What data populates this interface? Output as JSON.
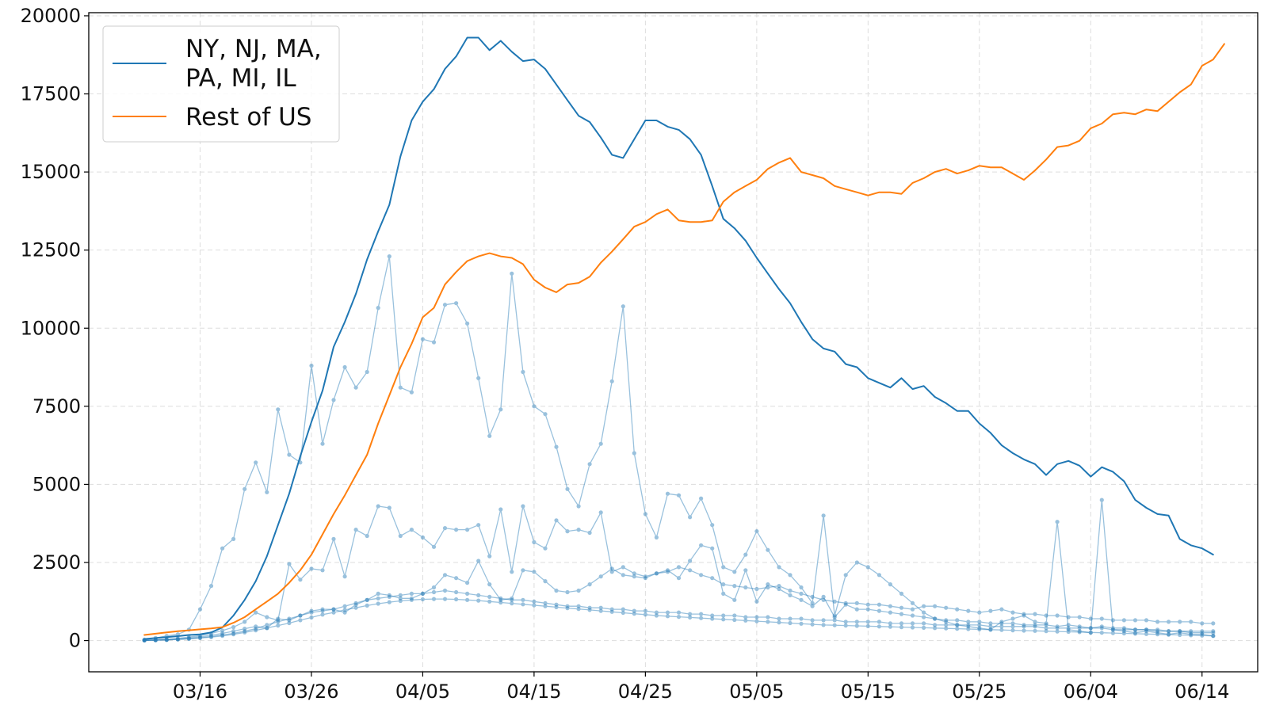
{
  "chart_data": {
    "type": "line",
    "title": "",
    "xlabel": "",
    "ylabel": "",
    "x_range": [
      "2020-03-06",
      "2020-06-19"
    ],
    "ylim": [
      -1000,
      20100
    ],
    "x_ticks": [
      {
        "date": "2020-03-16",
        "label": "03/16"
      },
      {
        "date": "2020-03-26",
        "label": "03/26"
      },
      {
        "date": "2020-04-05",
        "label": "04/05"
      },
      {
        "date": "2020-04-15",
        "label": "04/15"
      },
      {
        "date": "2020-04-25",
        "label": "04/25"
      },
      {
        "date": "2020-05-05",
        "label": "05/05"
      },
      {
        "date": "2020-05-15",
        "label": "05/15"
      },
      {
        "date": "2020-05-25",
        "label": "05/25"
      },
      {
        "date": "2020-06-04",
        "label": "06/04"
      },
      {
        "date": "2020-06-14",
        "label": "06/14"
      }
    ],
    "y_ticks": [
      {
        "value": 0,
        "label": "0"
      },
      {
        "value": 2500,
        "label": "2500"
      },
      {
        "value": 5000,
        "label": "5000"
      },
      {
        "value": 7500,
        "label": "7500"
      },
      {
        "value": 10000,
        "label": "10000"
      },
      {
        "value": 12500,
        "label": "12500"
      },
      {
        "value": 15000,
        "label": "15000"
      },
      {
        "value": 17500,
        "label": "17500"
      },
      {
        "value": 20000,
        "label": "20000"
      }
    ],
    "grid": true,
    "legend_position": "top-left",
    "dates_start": "2020-03-11",
    "series": [
      {
        "name": "NY, NJ, MA,\nPA, MI, IL",
        "color": "#1f77b4",
        "width": 2,
        "values": [
          50,
          80,
          110,
          140,
          180,
          200,
          260,
          420,
          800,
          1300,
          1900,
          2700,
          3700,
          4700,
          5900,
          7000,
          8000,
          9400,
          10200,
          11100,
          12200,
          13100,
          13950,
          15500,
          16650,
          17250,
          17650,
          18300,
          18700,
          19300,
          19300,
          18900,
          19200,
          18850,
          18550,
          18600,
          18300,
          17800,
          17300,
          16800,
          16600,
          16100,
          15550,
          15450,
          16050,
          16650,
          16650,
          16450,
          16350,
          16050,
          15550,
          14550,
          13500,
          13200,
          12800,
          12250,
          11750,
          11250,
          10800,
          10200,
          9650,
          9350,
          9250,
          8850,
          8750,
          8400,
          8250,
          8100,
          8400,
          8050,
          8150,
          7800,
          7600,
          7350,
          7350,
          6950,
          6650,
          6250,
          6000,
          5800,
          5650,
          5300,
          5650,
          5750,
          5600,
          5250,
          5550,
          5400,
          5100,
          4500,
          4250,
          4050,
          4000,
          3250,
          3050,
          2950,
          2750
        ]
      },
      {
        "name": "Rest of US",
        "color": "#ff7f0e",
        "width": 2,
        "values": [
          180,
          220,
          260,
          300,
          330,
          360,
          390,
          430,
          570,
          750,
          1000,
          1250,
          1500,
          1850,
          2250,
          2750,
          3400,
          4050,
          4650,
          5300,
          5950,
          6950,
          7850,
          8750,
          9500,
          10350,
          10650,
          11400,
          11800,
          12150,
          12300,
          12400,
          12300,
          12250,
          12050,
          11550,
          11300,
          11150,
          11400,
          11450,
          11650,
          12100,
          12450,
          12850,
          13250,
          13400,
          13650,
          13800,
          13450,
          13400,
          13400,
          13450,
          14050,
          14350,
          14550,
          14750,
          15100,
          15300,
          15450,
          15000,
          14900,
          14800,
          14550,
          14450,
          14350,
          14250,
          14350,
          14350,
          14300,
          14650,
          14800,
          15000,
          15100,
          14950,
          15050,
          15200,
          15150,
          15150,
          14950,
          14750,
          15050,
          15400,
          15800,
          15850,
          16000,
          16400,
          16550,
          16850,
          16900,
          16850,
          17000,
          16950,
          17250,
          17550,
          17800,
          18400,
          18600,
          19100
        ]
      },
      {
        "name": "",
        "color": "#1f77b4",
        "width": 1.3,
        "opacity": 0.45,
        "markers": true,
        "values": [
          30,
          80,
          150,
          200,
          350,
          1000,
          1750,
          2950,
          3250,
          4850,
          5700,
          4750,
          7400,
          5950,
          5700,
          8800,
          6300,
          7700,
          8750,
          8100,
          8600,
          10650,
          12300,
          8100,
          7950,
          9650,
          9550,
          10750,
          10800,
          10150,
          8400,
          6550,
          7400,
          11750,
          8600,
          7500,
          7250,
          6200,
          4850,
          4300,
          5650,
          6300,
          8300,
          10700,
          6000,
          4050,
          3300,
          4700,
          4650,
          3950,
          4550,
          3700,
          2350,
          2200,
          2750,
          3500,
          2900,
          2350,
          2100,
          1700,
          1200,
          4000,
          800,
          2100,
          2500,
          2350,
          2100,
          1800,
          1500,
          1200,
          900,
          700,
          600,
          500,
          450,
          400,
          350,
          600,
          700,
          800,
          600,
          550,
          3800,
          350,
          300,
          250,
          4500,
          350,
          300,
          250,
          300,
          250,
          200,
          250,
          200,
          200,
          150
        ]
      },
      {
        "name": "",
        "color": "#1f77b4",
        "width": 1.3,
        "opacity": 0.45,
        "markers": true,
        "values": [
          10,
          20,
          40,
          70,
          110,
          160,
          230,
          320,
          430,
          600,
          900,
          750,
          650,
          2450,
          1950,
          2300,
          2250,
          3250,
          2050,
          3550,
          3350,
          4300,
          4250,
          3350,
          3550,
          3300,
          3000,
          3600,
          3550,
          3550,
          3700,
          2700,
          4200,
          2200,
          4300,
          3150,
          2950,
          3850,
          3500,
          3550,
          3450,
          4100,
          2200,
          2350,
          2150,
          2050,
          2150,
          2250,
          2000,
          2550,
          3050,
          2950,
          1500,
          1300,
          2250,
          1250,
          1800,
          1650,
          1450,
          1300,
          1100,
          1400,
          750,
          1150,
          1000,
          1000,
          950,
          900,
          850,
          800,
          750,
          700,
          650,
          650,
          600,
          600,
          550,
          550,
          550,
          500,
          500,
          500,
          450,
          500,
          450,
          400,
          450,
          400,
          400,
          350,
          350,
          300,
          300,
          300,
          250,
          250,
          250
        ]
      },
      {
        "name": "",
        "color": "#1f77b4",
        "width": 1.3,
        "opacity": 0.45,
        "markers": true,
        "values": [
          10,
          20,
          30,
          50,
          80,
          120,
          170,
          230,
          300,
          380,
          450,
          400,
          700,
          650,
          800,
          950,
          1000,
          1000,
          900,
          1150,
          1300,
          1500,
          1450,
          1350,
          1350,
          1500,
          1700,
          2100,
          2000,
          1850,
          2550,
          1800,
          1300,
          1350,
          2250,
          2200,
          1900,
          1600,
          1550,
          1600,
          1800,
          2050,
          2300,
          2100,
          2050,
          2000,
          2150,
          2200,
          2350,
          2250,
          2100,
          2000,
          1800,
          1750,
          1700,
          1650,
          1700,
          1750,
          1600,
          1500,
          1400,
          1300,
          1250,
          1200,
          1200,
          1150,
          1150,
          1100,
          1050,
          1000,
          1100,
          1100,
          1050,
          1000,
          950,
          900,
          950,
          1000,
          900,
          850,
          850,
          800,
          800,
          750,
          750,
          700,
          700,
          650,
          650,
          650,
          650,
          600,
          600,
          600,
          600,
          550,
          550
        ]
      },
      {
        "name": "",
        "color": "#1f77b4",
        "width": 1.3,
        "opacity": 0.45,
        "markers": true,
        "values": [
          10,
          15,
          25,
          40,
          60,
          90,
          130,
          180,
          230,
          300,
          380,
          500,
          600,
          700,
          800,
          900,
          950,
          1000,
          1100,
          1200,
          1300,
          1350,
          1400,
          1450,
          1500,
          1500,
          1550,
          1600,
          1550,
          1500,
          1450,
          1400,
          1350,
          1300,
          1300,
          1250,
          1200,
          1150,
          1100,
          1100,
          1050,
          1050,
          1000,
          1000,
          950,
          950,
          900,
          900,
          900,
          850,
          850,
          800,
          800,
          800,
          750,
          750,
          750,
          700,
          700,
          700,
          650,
          650,
          650,
          600,
          600,
          600,
          600,
          550,
          550,
          550,
          550,
          500,
          500,
          500,
          500,
          500,
          450,
          450,
          450,
          450,
          450,
          400,
          400,
          400,
          400,
          400,
          400,
          350,
          350,
          350,
          350,
          350,
          300,
          300,
          300,
          300,
          300
        ]
      },
      {
        "name": "",
        "color": "#1f77b4",
        "width": 1.3,
        "opacity": 0.45,
        "markers": true,
        "values": [
          5,
          10,
          20,
          35,
          55,
          80,
          110,
          150,
          200,
          260,
          330,
          400,
          480,
          560,
          650,
          740,
          830,
          900,
          980,
          1050,
          1120,
          1180,
          1230,
          1270,
          1300,
          1320,
          1330,
          1330,
          1320,
          1300,
          1280,
          1250,
          1220,
          1190,
          1160,
          1130,
          1100,
          1070,
          1040,
          1010,
          980,
          950,
          920,
          890,
          860,
          830,
          800,
          780,
          760,
          740,
          720,
          700,
          680,
          660,
          640,
          620,
          600,
          580,
          560,
          540,
          520,
          500,
          490,
          480,
          470,
          460,
          450,
          440,
          430,
          420,
          410,
          400,
          390,
          380,
          370,
          360,
          350,
          340,
          330,
          320,
          310,
          300,
          290,
          280,
          270,
          260,
          250,
          240,
          230,
          220,
          210,
          200,
          190,
          180,
          170,
          160,
          150
        ]
      }
    ]
  }
}
